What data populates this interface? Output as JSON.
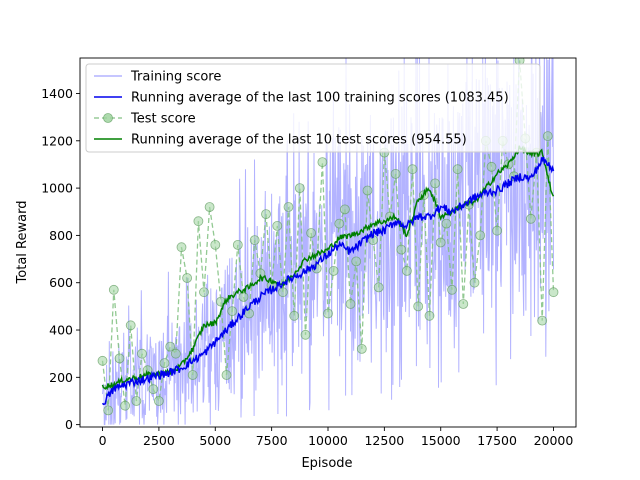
{
  "chart_data": {
    "type": "line",
    "xlabel": "Episode",
    "ylabel": "Total Reward",
    "xlim": [
      -1000,
      21000
    ],
    "ylim": [
      -10,
      1550
    ],
    "xticks": [
      0,
      2500,
      5000,
      7500,
      10000,
      12500,
      15000,
      17500,
      20000
    ],
    "yticks": [
      0,
      200,
      400,
      600,
      800,
      1000,
      1200,
      1400
    ],
    "legend_position": "upper-left",
    "grid": false,
    "colors": {
      "training": "#b3b3ff",
      "running_train": "#0000ee",
      "test": "#7fbf7f",
      "running_test": "#008000"
    },
    "legend": [
      {
        "key": "training",
        "label": "Training score"
      },
      {
        "key": "running_train",
        "label": "Running average of the last 100 training scores (1083.45)"
      },
      {
        "key": "test",
        "label": "Test score"
      },
      {
        "key": "running_test",
        "label": "Running average of the last 10 test scores (954.55)"
      }
    ],
    "series": [
      {
        "name": "Running average of the last 100 training scores (1083.45)",
        "key": "running_train",
        "x": [
          0,
          500,
          1000,
          1500,
          2000,
          2500,
          3000,
          3500,
          4000,
          4500,
          5000,
          5500,
          6000,
          6500,
          7000,
          7500,
          8000,
          8500,
          9000,
          9500,
          10000,
          10500,
          11000,
          11500,
          12000,
          12500,
          13000,
          13500,
          14000,
          14500,
          15000,
          15500,
          16000,
          16500,
          17000,
          17500,
          18000,
          18500,
          19000,
          19500,
          20000
        ],
        "y": [
          90,
          150,
          170,
          185,
          195,
          210,
          220,
          240,
          270,
          300,
          350,
          400,
          450,
          500,
          540,
          570,
          600,
          625,
          650,
          680,
          720,
          760,
          730,
          770,
          810,
          820,
          860,
          840,
          880,
          880,
          920,
          900,
          930,
          960,
          980,
          990,
          1020,
          1050,
          1040,
          1120,
          1083
        ]
      },
      {
        "name": "Running average of the last 10 test scores (954.55)",
        "key": "running_test",
        "x": [
          0,
          500,
          1000,
          1500,
          2000,
          2500,
          3000,
          3500,
          4000,
          4500,
          5000,
          5500,
          6000,
          6500,
          7000,
          7500,
          8000,
          8500,
          9000,
          9500,
          10000,
          10500,
          11000,
          11500,
          12000,
          12500,
          13000,
          13500,
          14000,
          14500,
          15000,
          15500,
          16000,
          16500,
          17000,
          17500,
          18000,
          18500,
          19000,
          19500,
          20000
        ],
        "y": [
          160,
          170,
          190,
          200,
          210,
          215,
          220,
          250,
          320,
          420,
          430,
          530,
          560,
          580,
          620,
          610,
          590,
          640,
          700,
          720,
          740,
          790,
          800,
          820,
          850,
          860,
          880,
          800,
          950,
          1000,
          880,
          900,
          930,
          940,
          1000,
          1060,
          1100,
          1170,
          1140,
          1150,
          955
        ]
      }
    ],
    "test_points": {
      "name": "Test score",
      "key": "test",
      "x": [
        0,
        250,
        500,
        750,
        1000,
        1250,
        1500,
        1750,
        2000,
        2250,
        2500,
        2750,
        3000,
        3250,
        3500,
        3750,
        4000,
        4250,
        4500,
        4750,
        5000,
        5250,
        5500,
        5750,
        6000,
        6250,
        6500,
        6750,
        7000,
        7250,
        7500,
        7750,
        8000,
        8250,
        8500,
        8750,
        9000,
        9250,
        9500,
        9750,
        10000,
        10250,
        10500,
        10750,
        11000,
        11250,
        11500,
        11750,
        12000,
        12250,
        12500,
        12750,
        13000,
        13250,
        13500,
        13750,
        14000,
        14250,
        14500,
        14750,
        15000,
        15250,
        15500,
        15750,
        16000,
        16250,
        16500,
        16750,
        17000,
        17250,
        17500,
        17750,
        18000,
        18250,
        18500,
        18750,
        19000,
        19250,
        19500,
        19750,
        20000
      ],
      "y": [
        270,
        60,
        570,
        280,
        80,
        420,
        100,
        300,
        230,
        150,
        100,
        260,
        330,
        300,
        750,
        620,
        210,
        860,
        560,
        920,
        760,
        520,
        210,
        480,
        760,
        540,
        470,
        780,
        640,
        890,
        590,
        840,
        560,
        920,
        460,
        1000,
        380,
        810,
        660,
        1110,
        470,
        650,
        850,
        910,
        510,
        690,
        320,
        990,
        780,
        580,
        1150,
        880,
        1060,
        740,
        650,
        1080,
        500,
        970,
        460,
        1020,
        770,
        850,
        570,
        1080,
        510,
        930,
        600,
        800,
        1200,
        1090,
        820,
        1200,
        1100,
        1050,
        1540,
        1210,
        870,
        1150,
        440,
        1220,
        560
      ]
    }
  }
}
